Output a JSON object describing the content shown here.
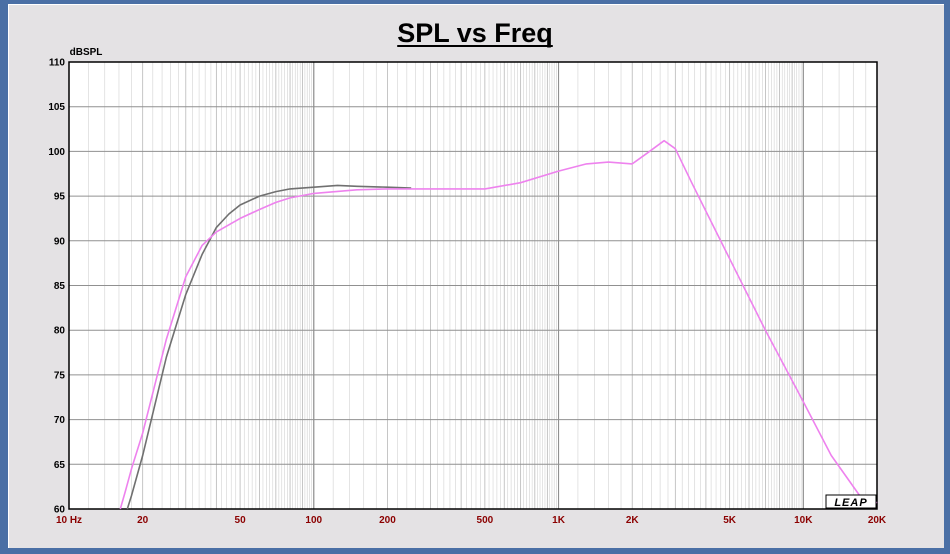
{
  "chart_data": {
    "type": "line",
    "title": "SPL vs Freq",
    "ylabel": "dBSPL",
    "xlabel": "",
    "xscale": "log",
    "xlim": [
      10,
      20000
    ],
    "ylim": [
      60,
      110
    ],
    "grid": true,
    "yticks": [
      60,
      65,
      70,
      75,
      80,
      85,
      90,
      95,
      100,
      105,
      110
    ],
    "ytick_labels": [
      "60",
      "65",
      "70",
      "75",
      "80",
      "85",
      "90",
      "95",
      "100",
      "105",
      "110"
    ],
    "xticks": [
      10,
      20,
      50,
      100,
      200,
      500,
      1000,
      2000,
      5000,
      10000,
      20000
    ],
    "xtick_labels": [
      "10  Hz",
      "20",
      "50",
      "100",
      "200",
      "500",
      "1K",
      "2K",
      "5K",
      "10K",
      "20K"
    ],
    "series": [
      {
        "color": "#707070",
        "points": [
          [
            17.3,
            60
          ],
          [
            18,
            61.5
          ],
          [
            20,
            66
          ],
          [
            25,
            77
          ],
          [
            30,
            84
          ],
          [
            35,
            88.5
          ],
          [
            40,
            91.5
          ],
          [
            45,
            93
          ],
          [
            50,
            94
          ],
          [
            60,
            95
          ],
          [
            70,
            95.5
          ],
          [
            80,
            95.8
          ],
          [
            100,
            96
          ],
          [
            125,
            96.2
          ],
          [
            150,
            96.1
          ],
          [
            200,
            96
          ],
          [
            250,
            95.9
          ]
        ]
      },
      {
        "color": "#ee82ee",
        "points": [
          [
            16.2,
            60
          ],
          [
            17,
            62
          ],
          [
            18,
            64.5
          ],
          [
            20,
            68.5
          ],
          [
            25,
            79
          ],
          [
            30,
            86
          ],
          [
            35,
            89.5
          ],
          [
            40,
            91
          ],
          [
            50,
            92.5
          ],
          [
            60,
            93.5
          ],
          [
            70,
            94.3
          ],
          [
            80,
            94.8
          ],
          [
            100,
            95.3
          ],
          [
            150,
            95.7
          ],
          [
            200,
            95.8
          ],
          [
            300,
            95.8
          ],
          [
            500,
            95.8
          ],
          [
            700,
            96.5
          ],
          [
            1000,
            97.8
          ],
          [
            1300,
            98.6
          ],
          [
            1600,
            98.8
          ],
          [
            2000,
            98.6
          ],
          [
            2300,
            99.8
          ],
          [
            2700,
            101.2
          ],
          [
            3000,
            100.3
          ],
          [
            3500,
            96.5
          ],
          [
            5000,
            88
          ],
          [
            7000,
            80
          ],
          [
            10000,
            72
          ],
          [
            13000,
            66
          ],
          [
            17000,
            61.5
          ],
          [
            20000,
            60.7
          ]
        ]
      }
    ]
  },
  "brand_logo": "LEAP"
}
